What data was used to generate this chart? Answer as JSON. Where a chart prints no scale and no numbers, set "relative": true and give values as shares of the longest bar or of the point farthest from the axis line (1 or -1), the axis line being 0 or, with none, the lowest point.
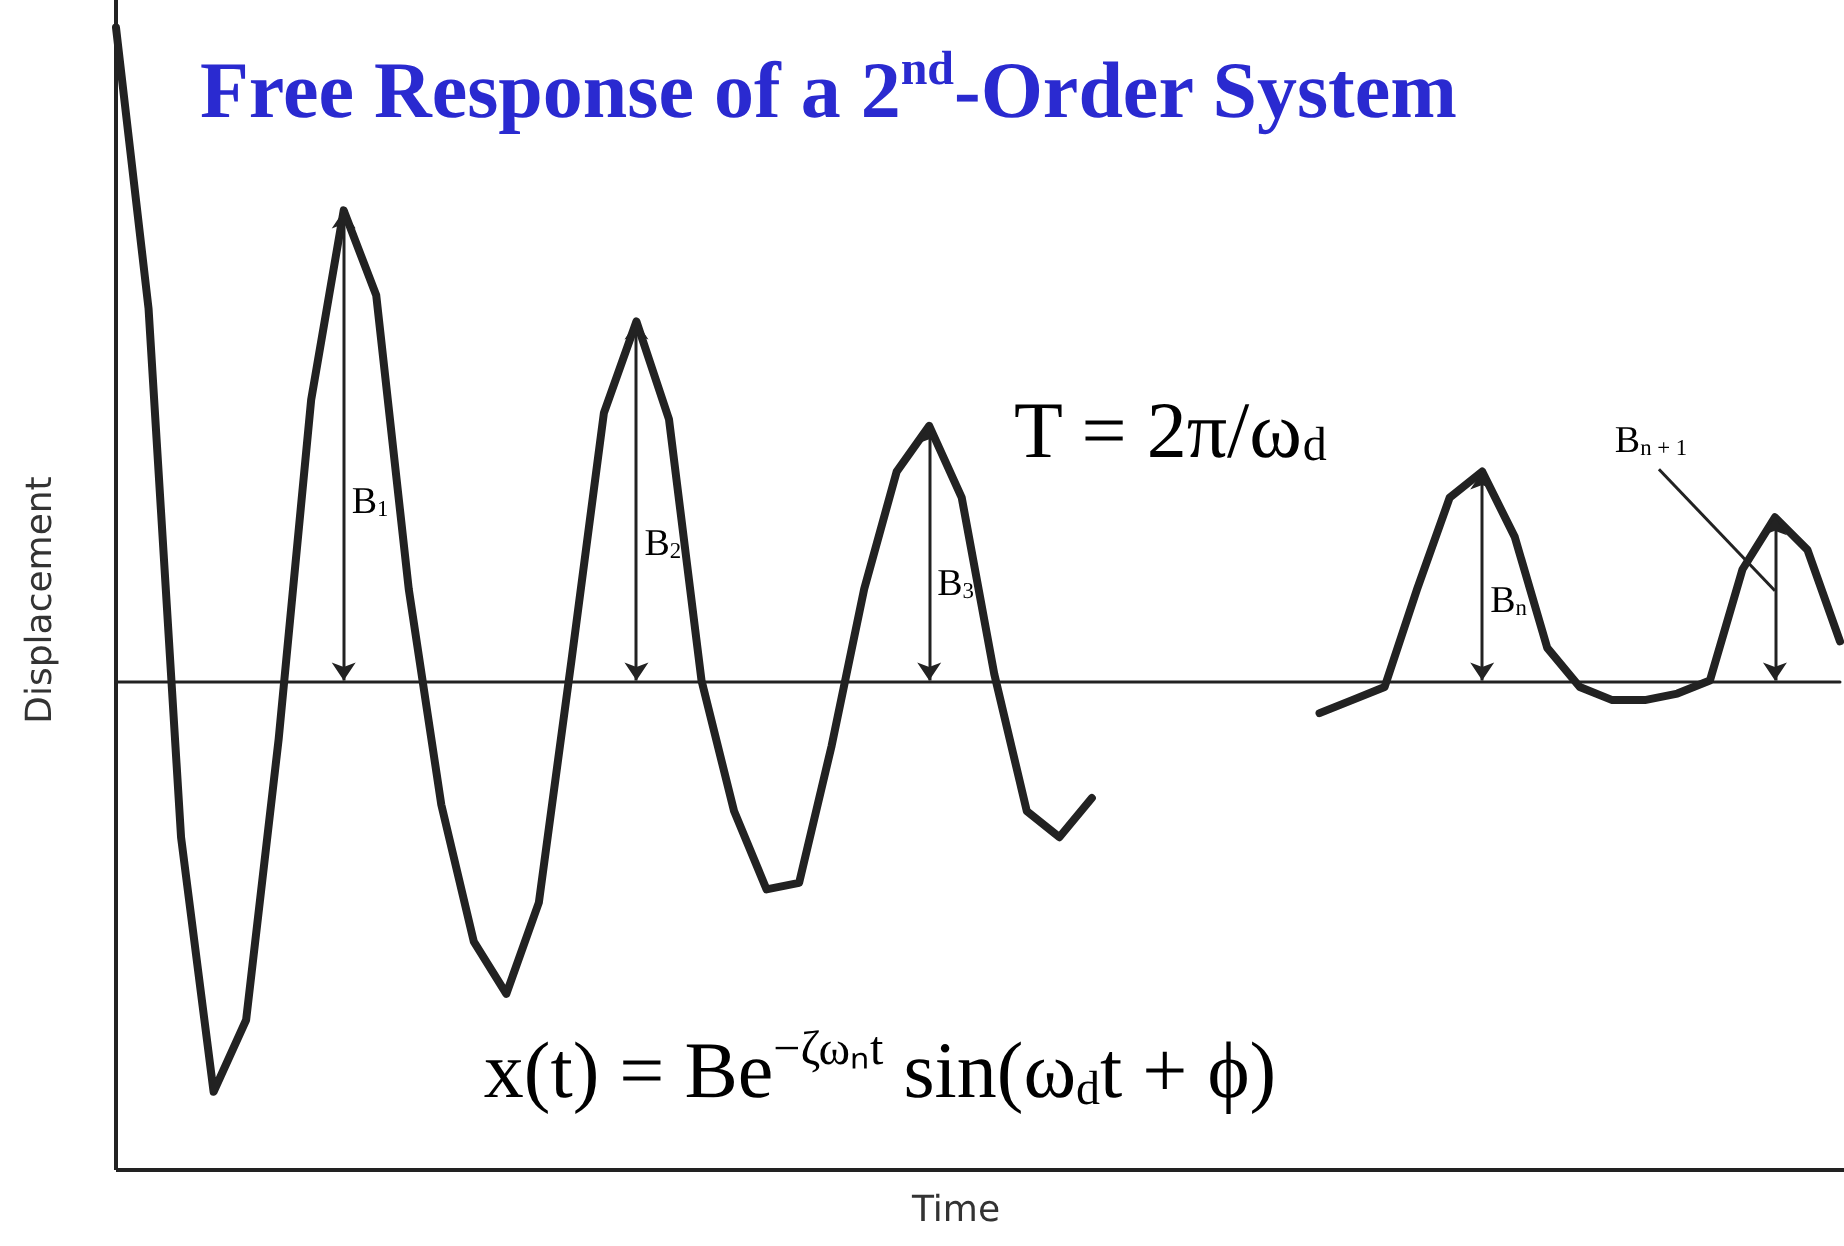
{
  "chart_data": {
    "type": "line",
    "title": "Free Response of a 2$^{nd}$-Order System",
    "xlabel": "Time",
    "ylabel": "Displacement",
    "relative": true,
    "categories": [
      null,
      null,
      null,
      null,
      null,
      null,
      null,
      null,
      null,
      null,
      null,
      null,
      null,
      null,
      null,
      null,
      null,
      null,
      null,
      null,
      null,
      null,
      null,
      null,
      null,
      null,
      null,
      null,
      null,
      null,
      null,
      null,
      null,
      null,
      null,
      null,
      null,
      null,
      null,
      null,
      null,
      null,
      null,
      null,
      null,
      null,
      null,
      null,
      null,
      null,
      null,
      null,
      null,
      null
    ],
    "values": [
      1.0,
      0.57,
      -0.24,
      -0.63,
      -0.52,
      -0.09,
      0.43,
      0.72,
      0.59,
      0.14,
      -0.19,
      -0.4,
      -0.48,
      -0.34,
      0.03,
      0.41,
      0.55,
      0.4,
      0,
      -0.2,
      -0.32,
      -0.31,
      -0.1,
      0.14,
      0.32,
      0.39,
      0.28,
      0.01,
      -0.2,
      -0.24,
      -0.18,
      null,
      null,
      null,
      null,
      null,
      null,
      -0.05,
      -0.03,
      -0.01,
      0.14,
      0.28,
      0.32,
      0.22,
      0.05,
      -0.01,
      -0.03,
      -0.03,
      -0.02,
      0,
      0.17,
      0.25,
      0.2,
      0.06
    ],
    "color": "#222222",
    "marker": "none",
    "line_style": "solid",
    "annotations": [
      "B$_{1}$",
      "B$_{2}$",
      "B$_{3}$",
      "B$_{n}$",
      "B$_{n + 1}$",
      "T = 2π/ω$_{d}$",
      "x(t) = Be$^{−ζωₙt}$ sin(ω$_{d}$t + ϕ)"
    ]
  }
}
